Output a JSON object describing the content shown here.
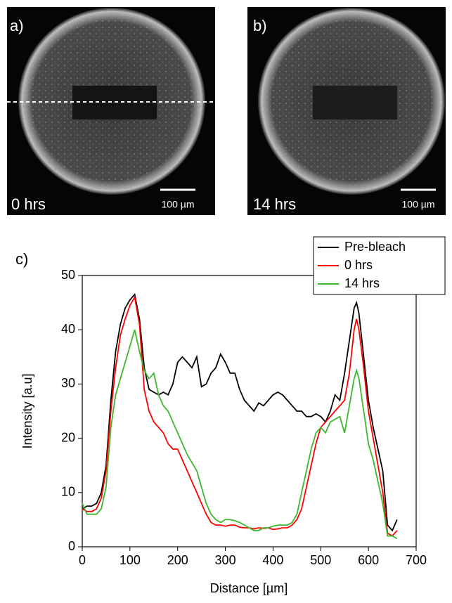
{
  "panels": [
    {
      "label": "a)",
      "time": "0 hrs",
      "scale_bar": "100 µm"
    },
    {
      "label": "b)",
      "time": "14 hrs",
      "scale_bar": "100 µm"
    }
  ],
  "chart_data": {
    "type": "line",
    "panel_label": "c)",
    "x_label": "Distance [µm]",
    "y_label": "Intensity [a.u]",
    "xlim": [
      0,
      700
    ],
    "xticks": [
      0,
      100,
      200,
      300,
      400,
      500,
      600,
      700
    ],
    "ylim": [
      0,
      50
    ],
    "yticks": [
      0,
      10,
      20,
      30,
      40,
      50
    ],
    "legend": "top-right",
    "x": [
      0,
      10,
      20,
      30,
      40,
      50,
      60,
      70,
      80,
      90,
      100,
      110,
      120,
      130,
      140,
      150,
      160,
      170,
      180,
      190,
      200,
      210,
      220,
      230,
      240,
      250,
      260,
      270,
      280,
      290,
      300,
      310,
      320,
      330,
      340,
      350,
      360,
      370,
      380,
      390,
      400,
      410,
      420,
      430,
      440,
      450,
      460,
      470,
      480,
      490,
      500,
      510,
      520,
      530,
      540,
      550,
      560,
      570,
      575,
      580,
      590,
      600,
      610,
      620,
      630,
      640,
      650,
      660
    ],
    "series": [
      {
        "name": "Pre-bleach",
        "color": "#000000",
        "values": [
          7,
          7.5,
          7.5,
          8,
          10,
          15,
          27,
          36,
          41,
          44,
          45.5,
          46.5,
          42,
          33,
          29,
          28.5,
          28,
          28.5,
          28,
          30,
          34,
          35,
          34,
          33,
          35,
          29.5,
          30,
          32,
          33,
          35.5,
          34,
          32,
          32,
          29,
          27,
          26,
          25,
          26.5,
          26,
          27,
          28,
          28.5,
          28,
          27,
          26,
          25,
          25,
          24,
          24,
          24.5,
          24,
          23,
          25,
          28,
          27,
          32,
          38,
          44,
          45,
          43,
          35,
          27,
          22,
          18,
          14,
          4,
          3,
          5
        ]
      },
      {
        "name": "0 hrs",
        "color": "#ff0000",
        "values": [
          7,
          6.5,
          6.5,
          7,
          9,
          14,
          25,
          33,
          39,
          42,
          44.5,
          46,
          41,
          29,
          25,
          23,
          22,
          21,
          19,
          18,
          18,
          16,
          14,
          12,
          10,
          8,
          6,
          4.5,
          4,
          4,
          3.8,
          4,
          4,
          3.6,
          3.5,
          3.5,
          3.3,
          3.5,
          3.4,
          3.5,
          3.2,
          3.3,
          3.5,
          3.5,
          4,
          5,
          7,
          11,
          15,
          19,
          22,
          23,
          24,
          25,
          26,
          27,
          32,
          40,
          42,
          40,
          33,
          25,
          20,
          15,
          10,
          2.5,
          2,
          3
        ]
      },
      {
        "name": "14 hrs",
        "color": "#3cb82e",
        "values": [
          8,
          6,
          6,
          6,
          7,
          11,
          22,
          28,
          31,
          34,
          37,
          40,
          36,
          32.5,
          31,
          32,
          28,
          26,
          25,
          23,
          21,
          19,
          17,
          15.5,
          14,
          11,
          8,
          6,
          5,
          4.5,
          5,
          5,
          4.8,
          4.5,
          4,
          3.5,
          3,
          3,
          3.5,
          3.5,
          3.8,
          4,
          4,
          4,
          4.5,
          6,
          10,
          14,
          18,
          21,
          22,
          21,
          23,
          23.5,
          24,
          21,
          26,
          31,
          32.5,
          31,
          25,
          19,
          16,
          12,
          8,
          2,
          2,
          1.5
        ]
      }
    ]
  }
}
